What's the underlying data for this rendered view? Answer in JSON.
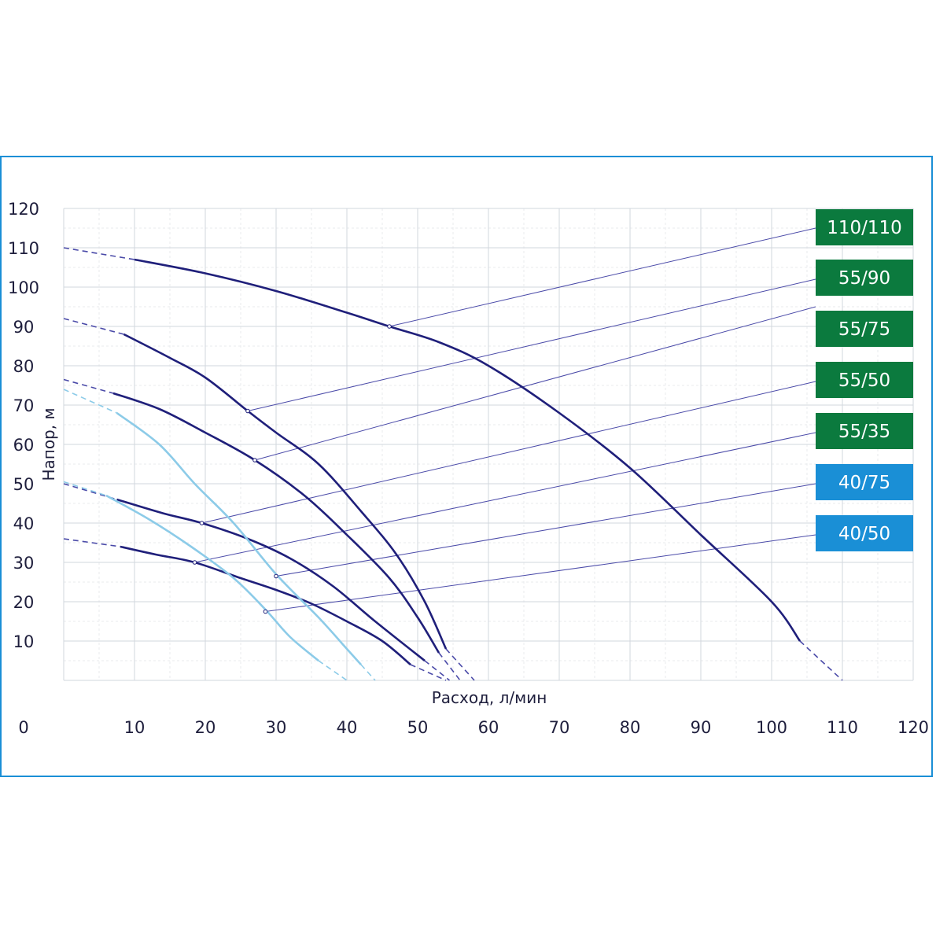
{
  "chart_data": {
    "type": "line",
    "xlabel": "Расход, л/мин",
    "ylabel": "Напор, м",
    "xlim": [
      0,
      120
    ],
    "ylim": [
      0,
      120
    ],
    "x_ticks": [
      "0",
      "10",
      "20",
      "30",
      "40",
      "50",
      "60",
      "70",
      "80",
      "90",
      "100",
      "110",
      "120"
    ],
    "y_ticks": [
      "10",
      "20",
      "30",
      "40",
      "50",
      "60",
      "70",
      "80",
      "90",
      "100",
      "110",
      "120"
    ],
    "grid": true,
    "series": [
      {
        "name": "110/110",
        "color": "#1f1f7a",
        "badge_color": "#0b7a3e",
        "dash_start": [
          [
            0,
            110
          ],
          [
            10,
            107
          ]
        ],
        "points": [
          [
            10,
            107
          ],
          [
            20,
            103.5
          ],
          [
            30,
            99
          ],
          [
            40,
            93.5
          ],
          [
            46,
            90
          ],
          [
            53,
            86
          ],
          [
            60,
            80
          ],
          [
            70,
            68
          ],
          [
            80,
            54
          ],
          [
            90,
            37
          ],
          [
            100,
            20
          ],
          [
            104,
            10
          ]
        ],
        "dash_end": [
          [
            104,
            10
          ],
          [
            110,
            0
          ]
        ],
        "marker": [
          46,
          90
        ],
        "badge_anchor_y": 115
      },
      {
        "name": "55/90",
        "color": "#1f1f7a",
        "badge_color": "#0b7a3e",
        "dash_start": [
          [
            0,
            92
          ],
          [
            8.5,
            88
          ]
        ],
        "points": [
          [
            8.5,
            88
          ],
          [
            15,
            82
          ],
          [
            20,
            77
          ],
          [
            26,
            68.5
          ],
          [
            30,
            63
          ],
          [
            36,
            55
          ],
          [
            42,
            43
          ],
          [
            47,
            32
          ],
          [
            51,
            20
          ],
          [
            54,
            8
          ]
        ],
        "dash_end": [
          [
            54,
            8
          ],
          [
            58,
            0
          ]
        ],
        "marker": [
          26,
          68.5
        ],
        "badge_anchor_y": 102
      },
      {
        "name": "55/75",
        "color": "#1f1f7a",
        "badge_color": "#0b7a3e",
        "dash_start": [
          [
            0,
            76.5
          ],
          [
            7,
            73
          ]
        ],
        "points": [
          [
            7,
            73
          ],
          [
            13.5,
            69
          ],
          [
            20,
            63
          ],
          [
            27,
            56
          ],
          [
            34,
            47
          ],
          [
            40,
            37
          ],
          [
            46,
            26
          ],
          [
            50,
            16
          ],
          [
            53,
            7
          ]
        ],
        "dash_end": [
          [
            53,
            7
          ],
          [
            56,
            0
          ]
        ],
        "marker": [
          27,
          56
        ],
        "badge_anchor_y": 95
      },
      {
        "name": "55/50",
        "color": "#1f1f7a",
        "badge_color": "#0b7a3e",
        "dash_start": [
          [
            0,
            50
          ],
          [
            7.5,
            46
          ]
        ],
        "points": [
          [
            7.5,
            46
          ],
          [
            14,
            42.5
          ],
          [
            19.5,
            40
          ],
          [
            26,
            36
          ],
          [
            32,
            31
          ],
          [
            38,
            24
          ],
          [
            44,
            15
          ],
          [
            51,
            5
          ]
        ],
        "dash_end": [
          [
            51,
            5
          ],
          [
            54.5,
            0
          ]
        ],
        "marker": [
          19.5,
          40
        ],
        "badge_anchor_y": 76
      },
      {
        "name": "55/35",
        "color": "#1f1f7a",
        "badge_color": "#0b7a3e",
        "dash_start": [
          [
            0,
            36
          ],
          [
            8,
            34
          ]
        ],
        "points": [
          [
            8,
            34
          ],
          [
            13,
            32
          ],
          [
            18.5,
            30
          ],
          [
            25,
            26
          ],
          [
            30,
            23
          ],
          [
            35,
            19.5
          ],
          [
            40,
            15
          ],
          [
            45,
            10
          ],
          [
            49,
            4
          ]
        ],
        "dash_end": [
          [
            49,
            4
          ],
          [
            54,
            0
          ]
        ],
        "marker": [
          18.5,
          30
        ],
        "badge_anchor_y": 63
      },
      {
        "name": "40/75",
        "color": "#8ccbe8",
        "badge_color": "#1a8fd6",
        "dash_start": [
          [
            0,
            74
          ],
          [
            7.5,
            68
          ]
        ],
        "points": [
          [
            7.5,
            68
          ],
          [
            13.5,
            60
          ],
          [
            18.5,
            50
          ],
          [
            24,
            40
          ],
          [
            30,
            27
          ],
          [
            36,
            16
          ],
          [
            40,
            8
          ],
          [
            42,
            4
          ]
        ],
        "dash_end": [
          [
            42,
            4
          ],
          [
            44,
            0
          ]
        ],
        "marker": [
          30,
          26.5
        ],
        "badge_anchor_y": 50
      },
      {
        "name": "40/50",
        "color": "#8ccbe8",
        "badge_color": "#1a8fd6",
        "dash_start": [
          [
            0,
            50.5
          ],
          [
            6,
            47
          ]
        ],
        "points": [
          [
            6,
            47
          ],
          [
            12,
            41
          ],
          [
            18,
            34
          ],
          [
            24,
            26
          ],
          [
            28.5,
            18
          ],
          [
            32,
            11
          ],
          [
            36,
            5
          ]
        ],
        "dash_end": [
          [
            36,
            5
          ],
          [
            40,
            0
          ]
        ],
        "marker": [
          28.5,
          17.5
        ],
        "badge_anchor_y": 37
      }
    ]
  }
}
